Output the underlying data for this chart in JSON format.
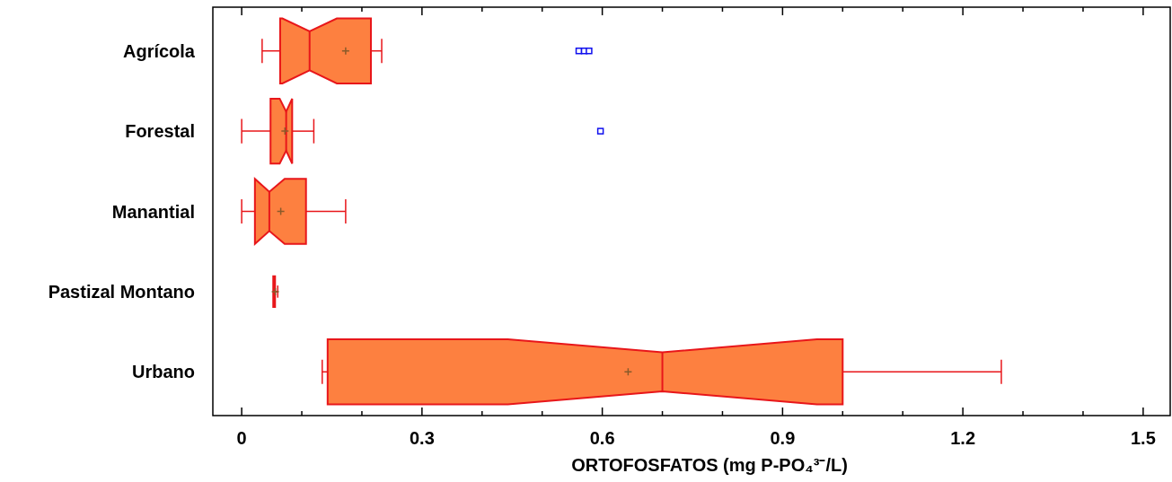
{
  "chart_data": {
    "type": "box",
    "orientation": "horizontal",
    "xlabel": "ORTOFOSFATOS (mg P-PO₄³⁻/L)",
    "categories": [
      "Agrícola",
      "Forestal",
      "Manantial",
      "Pastizal Montano",
      "Urbano"
    ],
    "colors": [
      "#fd8040",
      "#fd8040",
      "#fd8040",
      "#e8161a",
      "#fd8040"
    ],
    "boxes": [
      {
        "low": 0.034,
        "q1": 0.064,
        "median": 0.113,
        "q3": 0.215,
        "high": 0.233,
        "mean": 0.173,
        "outliers": [
          0.561,
          0.57,
          0.578
        ]
      },
      {
        "low": 0.0,
        "q1": 0.048,
        "median": 0.074,
        "q3": 0.084,
        "high": 0.12,
        "mean": 0.072,
        "outliers": [
          0.597
        ]
      },
      {
        "low": 0.0,
        "q1": 0.022,
        "median": 0.046,
        "q3": 0.107,
        "high": 0.173,
        "mean": 0.065
      },
      {
        "low": 0.054,
        "q1": 0.054,
        "median": 0.054,
        "q3": 0.054,
        "high": 0.06,
        "mean": 0.056
      },
      {
        "low": 0.134,
        "q1": 0.143,
        "median": 0.7,
        "q3": 1.0,
        "high": 1.264,
        "mean": 0.643
      }
    ],
    "xlim": [
      -0.048,
      1.545
    ],
    "xticks": [
      0,
      {
        "value": 0.1,
        "label": null
      },
      {
        "value": 0.2,
        "label": null
      },
      0.3,
      {
        "value": 0.4,
        "label": null
      },
      {
        "value": 0.5,
        "label": null
      },
      0.6,
      {
        "value": 0.7,
        "label": null
      },
      {
        "value": 0.8,
        "label": null
      },
      0.9,
      {
        "value": 1.0,
        "label": null
      },
      {
        "value": 1.1,
        "label": null
      },
      1.2,
      {
        "value": 1.3,
        "label": null
      },
      {
        "value": 1.4,
        "label": null
      },
      1.5
    ]
  }
}
